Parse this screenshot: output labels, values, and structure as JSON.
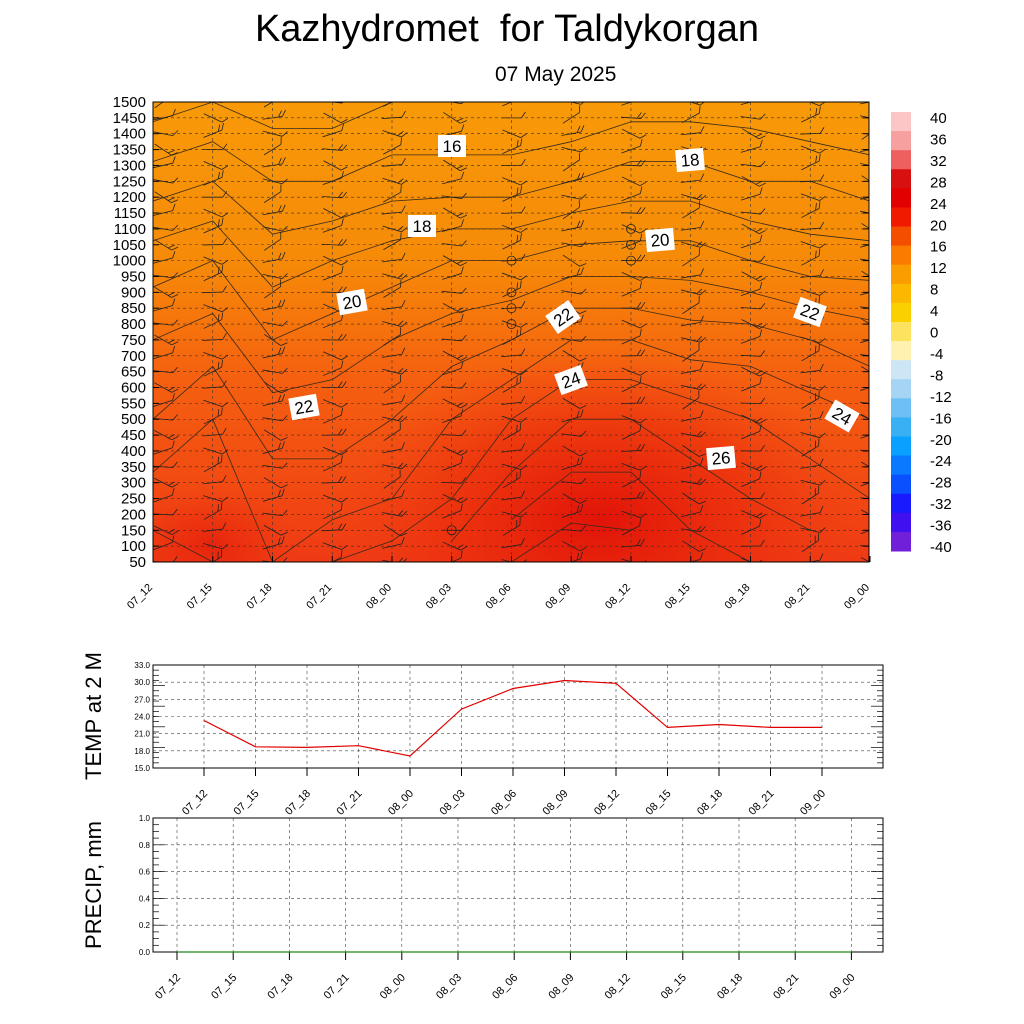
{
  "title": "Kazhydromet  for Taldykorgan",
  "subtitle": "07 May 2025",
  "chart_data": [
    {
      "type": "heatmap",
      "name": "cross-section",
      "x_ticks": [
        "07_12",
        "07_15",
        "07_18",
        "07_21",
        "08_00",
        "08_03",
        "08_06",
        "08_09",
        "08_12",
        "08_15",
        "08_18",
        "08_21",
        "09_00"
      ],
      "y_ticks": [
        1500,
        1450,
        1400,
        1350,
        1300,
        1250,
        1200,
        1150,
        1100,
        1050,
        1000,
        950,
        900,
        850,
        800,
        750,
        700,
        650,
        600,
        550,
        500,
        450,
        400,
        350,
        300,
        250,
        200,
        150,
        100,
        50
      ],
      "ylim": [
        50,
        1500
      ],
      "colorbar": {
        "labels": [
          40,
          36,
          32,
          28,
          24,
          20,
          16,
          12,
          8,
          4,
          0,
          -4,
          -8,
          -12,
          -16,
          -20,
          -24,
          -28,
          -32,
          -36,
          -40
        ],
        "colors": [
          "#fcc6c6",
          "#f6a0a0",
          "#ee6060",
          "#d81010",
          "#e30000",
          "#f01a00",
          "#f44e00",
          "#fb7a00",
          "#fb9d00",
          "#fcb800",
          "#fbd000",
          "#fde260",
          "#fff2b0",
          "#cde6f6",
          "#a6d4f4",
          "#6ec0f4",
          "#3ab0f4",
          "#0aa0ff",
          "#0a78ff",
          "#0a50ff",
          "#1a1aff",
          "#4010f0",
          "#7020d8"
        ]
      },
      "contour_labels": [
        "16",
        "18",
        "18",
        "20",
        "20",
        "22",
        "22",
        "22",
        "24",
        "24",
        "26"
      ],
      "temperature_grid_x": [
        "07_12",
        "07_15",
        "07_18",
        "07_21",
        "08_00",
        "08_03",
        "08_06",
        "08_09",
        "08_12",
        "08_15",
        "08_18",
        "08_21",
        "09_00"
      ],
      "temperature_grid_y": [
        50,
        250,
        500,
        750,
        1000,
        1250,
        1500
      ],
      "temperature_grid": [
        [
          24.5,
          24.0,
          23.0,
          24.0,
          24.5,
          25.5,
          27.0,
          27.8,
          27.5,
          26.5,
          26.0,
          25.5,
          24.5
        ],
        [
          23.5,
          23.5,
          22.5,
          22.5,
          23.0,
          24.0,
          25.5,
          26.5,
          26.5,
          25.5,
          25.0,
          24.5,
          24.0
        ],
        [
          22.0,
          23.0,
          21.5,
          21.5,
          22.0,
          23.0,
          24.0,
          25.0,
          25.0,
          24.5,
          24.0,
          23.5,
          23.0
        ],
        [
          21.0,
          21.5,
          20.0,
          20.5,
          21.0,
          21.5,
          22.0,
          23.0,
          23.0,
          22.5,
          22.5,
          22.0,
          21.5
        ],
        [
          19.5,
          20.0,
          18.5,
          19.0,
          19.5,
          20.0,
          20.0,
          20.5,
          20.5,
          20.5,
          20.0,
          19.5,
          19.5
        ],
        [
          17.5,
          18.0,
          17.0,
          17.0,
          17.5,
          17.5,
          17.5,
          18.0,
          18.5,
          18.5,
          18.0,
          18.0,
          17.5
        ],
        [
          15.5,
          16.0,
          15.5,
          15.5,
          16.0,
          16.0,
          16.0,
          16.0,
          16.5,
          16.5,
          16.5,
          16.0,
          16.0
        ]
      ]
    },
    {
      "type": "line",
      "name": "temperature",
      "ylabel": "TEMP at 2 M",
      "x": [
        "07_12",
        "07_15",
        "07_18",
        "07_21",
        "08_00",
        "08_03",
        "08_06",
        "08_09",
        "08_12",
        "08_15",
        "08_18",
        "08_21",
        "09_00"
      ],
      "series": [
        {
          "values": [
            23.3,
            18.7,
            18.6,
            18.9,
            17.1,
            25.3,
            28.9,
            30.3,
            29.8,
            22.1,
            22.6,
            22.1,
            22.1
          ],
          "color": "#e00000"
        }
      ],
      "ylim": [
        15.0,
        33.0
      ],
      "y_ticks": [
        "33.0",
        "30.0",
        "27.0",
        "24.0",
        "21.0",
        "18.0",
        "15.0"
      ]
    },
    {
      "type": "line",
      "name": "precipitation",
      "ylabel": "PRECIP, mm",
      "x": [
        "07_12",
        "07_15",
        "07_18",
        "07_21",
        "08_00",
        "08_03",
        "08_06",
        "08_09",
        "08_12",
        "08_15",
        "08_18",
        "08_21",
        "09_00"
      ],
      "series": [
        {
          "values": [
            0,
            0,
            0,
            0,
            0,
            0,
            0,
            0,
            0,
            0,
            0,
            0,
            0
          ],
          "color": "#1a8a1a"
        }
      ],
      "ylim": [
        0.0,
        1.0
      ],
      "y_ticks": [
        "1.0",
        "0.8",
        "0.6",
        "0.4",
        "0.2",
        "0.0"
      ]
    }
  ]
}
